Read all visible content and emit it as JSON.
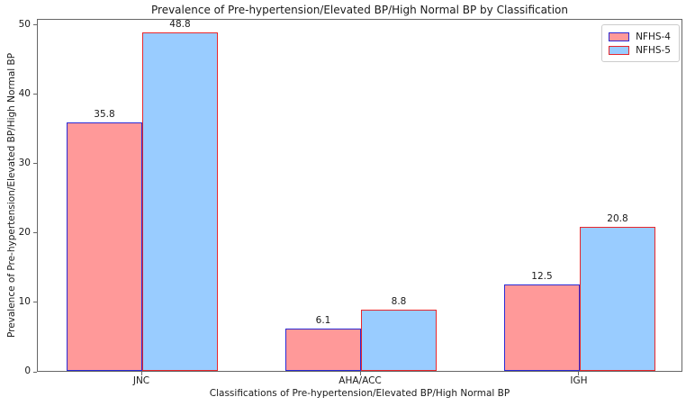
{
  "chart_data": {
    "type": "bar",
    "title": "Prevalence of Pre-hypertension/Elevated BP/High Normal BP by Classification",
    "xlabel": "Classifications of Pre-hypertension/Elevated BP/High Normal BP",
    "ylabel": "Prevalence of Pre-hypertension/Elevated BP/High Normal BP",
    "categories": [
      "JNC",
      "AHA/ACC",
      "IGH"
    ],
    "series": [
      {
        "name": "NFHS-4",
        "values": [
          35.8,
          6.1,
          12.5
        ],
        "fill_color": "#ff9999",
        "edge_color": "#2a2ad4"
      },
      {
        "name": "NFHS-5",
        "values": [
          48.8,
          8.8,
          20.8
        ],
        "fill_color": "#99ccff",
        "edge_color": "#e8272c"
      }
    ],
    "bar_value_labels": {
      "NFHS-4": [
        "35.8",
        "6.1",
        "12.5"
      ],
      "NFHS-5": [
        "48.8",
        "8.8",
        "20.8"
      ]
    },
    "y_ticks": [
      0,
      10,
      20,
      30,
      40,
      50
    ],
    "ylim": [
      0,
      50.9
    ],
    "grid": false,
    "legend_position": "upper right",
    "spine_color": "#666666",
    "background_color": "#ffffff"
  }
}
